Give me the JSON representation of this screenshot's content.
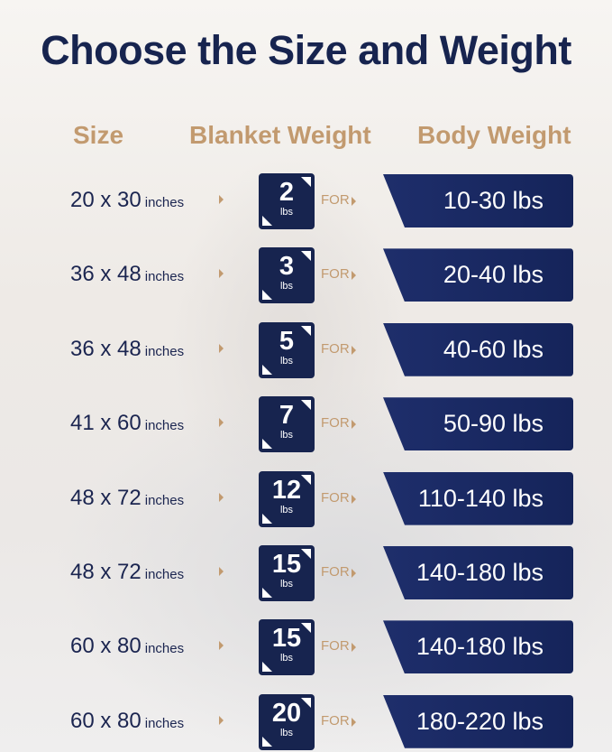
{
  "title": "Choose the Size and Weight",
  "headers": {
    "size": "Size",
    "blanket_weight": "Blanket Weight",
    "body_weight": "Body Weight"
  },
  "colors": {
    "navy": "#17244f",
    "tan": "#c29a6f"
  },
  "for_label": "FOR",
  "rows": [
    {
      "size": "20 x 30",
      "unit": "inches",
      "weight": "2",
      "weight_unit": "lbs",
      "body": "10-30 lbs"
    },
    {
      "size": "36 x 48",
      "unit": "inches",
      "weight": "3",
      "weight_unit": "lbs",
      "body": "20-40 lbs"
    },
    {
      "size": "36 x 48",
      "unit": "inches",
      "weight": "5",
      "weight_unit": "lbs",
      "body": "40-60 lbs"
    },
    {
      "size": "41 x 60",
      "unit": "inches",
      "weight": "7",
      "weight_unit": "lbs",
      "body": "50-90 lbs"
    },
    {
      "size": "48 x 72",
      "unit": "inches",
      "weight": "12",
      "weight_unit": "lbs",
      "body": "110-140 lbs"
    },
    {
      "size": "48 x 72",
      "unit": "inches",
      "weight": "15",
      "weight_unit": "lbs",
      "body": "140-180 lbs"
    },
    {
      "size": "60 x 80",
      "unit": "inches",
      "weight": "15",
      "weight_unit": "lbs",
      "body": "140-180 lbs"
    },
    {
      "size": "60 x 80",
      "unit": "inches",
      "weight": "20",
      "weight_unit": "lbs",
      "body": "180-220 lbs"
    }
  ]
}
